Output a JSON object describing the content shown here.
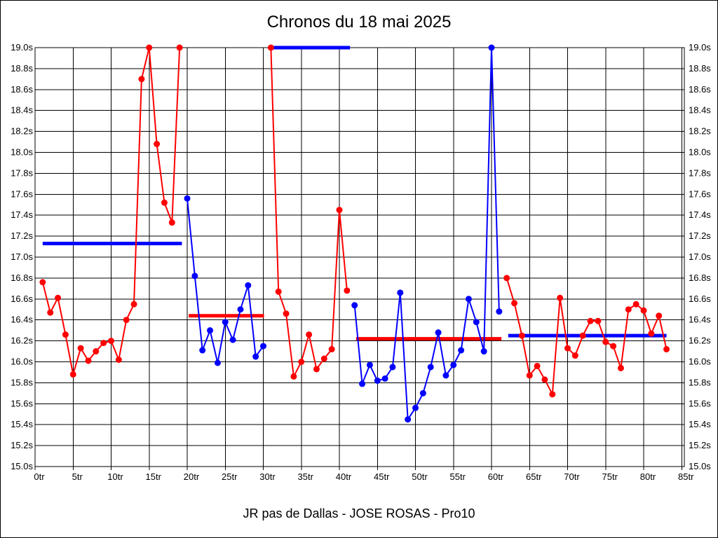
{
  "chart_data": {
    "type": "line",
    "title": "Chronos du 18 mai 2025",
    "footer": "JR pas de Dallas - JOSE ROSAS - Pro10",
    "xlabel": "",
    "ylabel": "",
    "xlim": [
      0,
      85.3
    ],
    "ylim": [
      15.0,
      19.0
    ],
    "grid": true,
    "legend": "none",
    "x_tick_values": [
      0,
      5,
      10,
      15,
      20,
      25,
      30,
      35,
      40,
      45,
      50,
      55,
      60,
      65,
      70,
      75,
      80,
      85
    ],
    "x_tick_labels": [
      "0tr",
      "5tr",
      "10tr",
      "15tr",
      "20tr",
      "25tr",
      "30tr",
      "35tr",
      "40tr",
      "45tr",
      "50tr",
      "55tr",
      "60tr",
      "65tr",
      "70tr",
      "75tr",
      "80tr",
      "85tr"
    ],
    "y_tick_values": [
      19.0,
      18.8,
      18.6,
      18.4,
      18.2,
      18.0,
      17.8,
      17.6,
      17.4,
      17.2,
      17.0,
      16.8,
      16.6,
      16.4,
      16.2,
      16.0,
      15.8,
      15.6,
      15.4,
      15.2,
      15.0
    ],
    "y_tick_labels": [
      "19.0s",
      "18.8s",
      "18.6s",
      "18.4s",
      "18.2s",
      "18.0s",
      "17.8s",
      "17.6s",
      "17.4s",
      "17.2s",
      "17.0s",
      "16.8s",
      "16.6s",
      "16.4s",
      "16.2s",
      "16.0s",
      "15.8s",
      "15.6s",
      "15.4s",
      "15.2s",
      "15.0s"
    ],
    "y_tick_sides": [
      "left",
      "right"
    ],
    "colors": {
      "red": "#ff0000",
      "blue": "#0000ff",
      "grid": "#000000",
      "background": "#ffffff"
    },
    "series": [
      {
        "name": "lap-times-stint-1-red",
        "color": "#ff0000",
        "marker": "circle",
        "x": [
          1,
          2,
          3,
          4,
          5,
          6,
          7,
          8,
          9,
          10,
          11,
          12,
          13,
          14,
          15,
          16,
          17,
          18,
          19
        ],
        "y": [
          16.76,
          16.47,
          16.61,
          16.26,
          15.88,
          16.13,
          16.01,
          16.1,
          16.18,
          16.2,
          16.02,
          16.4,
          16.55,
          18.7,
          19.0,
          18.08,
          17.52,
          17.33,
          19.0
        ]
      },
      {
        "name": "lap-times-stint-2-blue",
        "color": "#0000ff",
        "marker": "circle",
        "x": [
          20,
          21,
          22,
          23,
          24,
          25,
          26,
          27,
          28,
          29,
          30
        ],
        "y": [
          17.56,
          16.82,
          16.11,
          16.3,
          15.99,
          16.38,
          16.21,
          16.5,
          16.73,
          16.05,
          16.15
        ]
      },
      {
        "name": "lap-times-stint-3-red",
        "color": "#ff0000",
        "marker": "circle",
        "x": [
          31,
          32,
          33,
          34,
          35,
          36,
          37,
          38,
          39,
          40,
          41
        ],
        "y": [
          19.0,
          16.67,
          16.46,
          15.86,
          16.0,
          16.26,
          15.93,
          16.03,
          16.12,
          17.45,
          16.68
        ]
      },
      {
        "name": "lap-times-stint-4-blue",
        "color": "#0000ff",
        "marker": "circle",
        "x": [
          42,
          43,
          44,
          45,
          46,
          47,
          48,
          49,
          50,
          51,
          52,
          53,
          54,
          55,
          56,
          57,
          58,
          59,
          60,
          61
        ],
        "y": [
          16.54,
          15.79,
          15.97,
          15.82,
          15.84,
          15.95,
          16.66,
          15.45,
          15.56,
          15.7,
          15.95,
          16.28,
          15.87,
          15.97,
          16.11,
          16.6,
          16.38,
          16.1,
          19.0,
          16.48
        ]
      },
      {
        "name": "lap-times-stint-5-red",
        "color": "#ff0000",
        "marker": "circle",
        "x": [
          62,
          63,
          64,
          65,
          66,
          67,
          68,
          69,
          70,
          71,
          72,
          73,
          74,
          75,
          76,
          77,
          78,
          79,
          80,
          81,
          82,
          83
        ],
        "y": [
          16.8,
          16.56,
          16.25,
          15.87,
          15.96,
          15.83,
          15.69,
          16.61,
          16.13,
          16.06,
          16.25,
          16.39,
          16.39,
          16.19,
          16.15,
          15.94,
          16.5,
          16.55,
          16.49,
          16.27,
          16.44,
          16.12
        ]
      }
    ],
    "average_lines": [
      {
        "name": "average-line-stint-1",
        "color": "#0000ff",
        "value": 17.13,
        "x_start": 1.0,
        "x_end": 19.3
      },
      {
        "name": "average-line-stint-2",
        "color": "#ff0000",
        "value": 16.44,
        "x_start": 20.2,
        "x_end": 30.1
      },
      {
        "name": "average-line-stint-3",
        "color": "#0000ff",
        "value": 19.0,
        "x_start": 31.3,
        "x_end": 41.4
      },
      {
        "name": "average-line-stint-4",
        "color": "#ff0000",
        "value": 16.22,
        "x_start": 42.2,
        "x_end": 61.3
      },
      {
        "name": "average-line-stint-5",
        "color": "#0000ff",
        "value": 16.25,
        "x_start": 62.2,
        "x_end": 83.0
      }
    ]
  }
}
